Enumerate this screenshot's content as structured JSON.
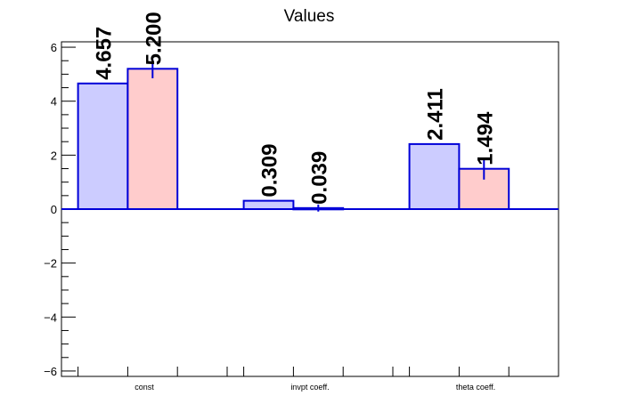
{
  "chart_data": {
    "type": "bar",
    "title": "Values",
    "xlabel": "",
    "ylabel": "",
    "categories": [
      "const",
      "invpt coeff.",
      "theta coeff."
    ],
    "ylim": [
      -6.2,
      6.2
    ],
    "yticks": [
      -6,
      -4,
      -2,
      0,
      2,
      4,
      6
    ],
    "ytick_labels": [
      "−6",
      "−4",
      "−2",
      "0",
      "2",
      "4",
      "6"
    ],
    "grid": false,
    "legend": "none",
    "series": [
      {
        "values": [
          4.657,
          0.309,
          2.411
        ],
        "labels": [
          "4.657",
          "0.309",
          "2.411"
        ],
        "errors": [
          0,
          0,
          0
        ],
        "color": "#ccccff"
      },
      {
        "values": [
          5.2,
          0.039,
          1.494
        ],
        "labels": [
          "5.200",
          "0.039",
          "1.494"
        ],
        "errors": [
          0.35,
          0.13,
          0.4
        ],
        "color": "#ffcccc"
      }
    ],
    "edge_color": "#0000d8"
  }
}
